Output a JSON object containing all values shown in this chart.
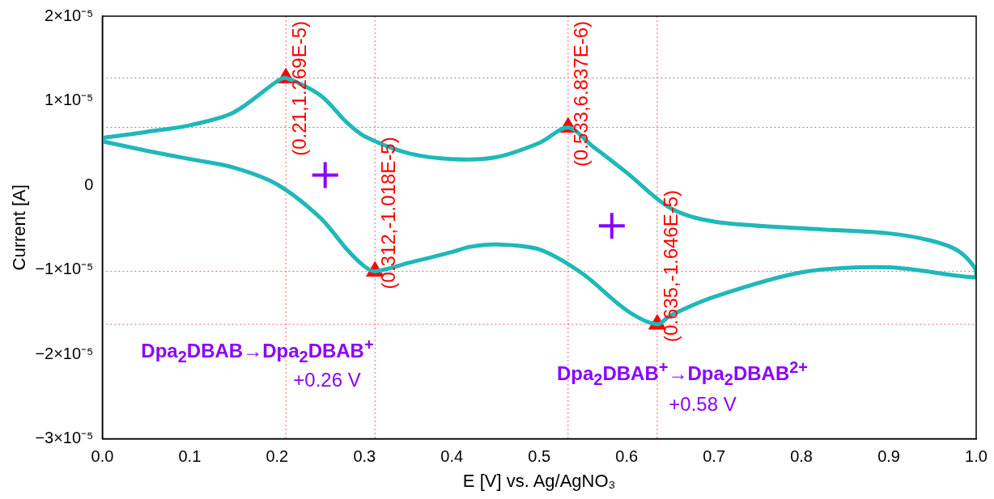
{
  "chart_data": {
    "type": "line",
    "xlabel": "E [V] vs. Ag/AgNO₃",
    "ylabel": "Current [A]",
    "xlim": [
      0,
      1
    ],
    "xticks": [
      {
        "value": 0,
        "label": "0.0"
      },
      0.1,
      0.2,
      0.3,
      0.4,
      0.5,
      0.6,
      0.7,
      0.8,
      0.9,
      {
        "value": 1,
        "label": "1.0"
      }
    ],
    "ylim": [
      -3e-05,
      2e-05
    ],
    "yticks": [
      {
        "value": -3e-05,
        "label": "−3×10⁻⁵"
      },
      {
        "value": -2e-05,
        "label": "−2×10⁻⁵"
      },
      {
        "value": -1e-05,
        "label": "−1×10⁻⁵"
      },
      0,
      {
        "value": 1e-05,
        "label": "1×10⁻⁵"
      },
      {
        "value": 2e-05,
        "label": "2×10⁻⁵"
      }
    ],
    "grid": false,
    "legend": false,
    "series": [
      {
        "type": "line",
        "color": "#20b8b8",
        "marker": "none",
        "line_style": "solid",
        "x": [
          0,
          0.05,
          0.1,
          0.15,
          0.2,
          0.21,
          0.25,
          0.28,
          0.3,
          0.35,
          0.4,
          0.45,
          0.5,
          0.533,
          0.56,
          0.6,
          0.65,
          0.7,
          0.8,
          0.9,
          0.95,
          0.98,
          1,
          1,
          0.9,
          0.8,
          0.7,
          0.65,
          0.635,
          0.6,
          0.55,
          0.5,
          0.45,
          0.42,
          0.4,
          0.35,
          0.312,
          0.3,
          0.28,
          0.25,
          0.2,
          0.15,
          0.1,
          0.05,
          0
        ],
        "values": [
          5.6e-06,
          6.3e-06,
          7.1e-06,
          8.6e-06,
          1.23e-05,
          1.269e-05,
          1.06e-05,
          7.4e-06,
          5.8e-06,
          3.8e-06,
          3.1e-06,
          3.3e-06,
          5e-06,
          6.837e-06,
          4.7e-06,
          1.5e-06,
          -2.7e-06,
          -4.3e-06,
          -5.1e-06,
          -5.7e-06,
          -6.6e-06,
          -7.8e-06,
          -1e-05,
          -1.09e-05,
          -9.7e-06,
          -1.03e-05,
          -1.32e-05,
          -1.54e-05,
          -1.646e-05,
          -1.48e-05,
          -1.05e-05,
          -7.6e-06,
          -7e-06,
          -7.3e-06,
          -7.9e-06,
          -9.2e-06,
          -1.018e-05,
          -9.6e-06,
          -7.6e-06,
          -3.9e-06,
          1e-07,
          2.1e-06,
          3.1e-06,
          4.1e-06,
          5.2e-06
        ]
      },
      {
        "type": "scatter",
        "color": "#ff0000",
        "marker": "triangle",
        "x": [
          0.21,
          0.312,
          0.533,
          0.635
        ],
        "values": [
          1.269e-05,
          -1.018e-05,
          6.837e-06,
          -1.646e-05
        ],
        "value_labels": [
          "(0.21,1.269E-5)",
          "(0.312,-1.018E-5)",
          "(0.533,6.837E-6)",
          "(0.635,-1.646E-5)"
        ]
      },
      {
        "type": "scatter",
        "color": "#8a00ff",
        "marker": "cross",
        "x": [
          0.255,
          0.583
        ],
        "values": [
          1.2e-06,
          -4.8e-06
        ]
      }
    ],
    "ref_lines": [
      {
        "axis": "y",
        "value": 1.269e-05,
        "color": "#888888",
        "line_style": "dotted"
      },
      {
        "axis": "y",
        "value": 6.837e-06,
        "color": "#888888",
        "line_style": "dotted"
      },
      {
        "axis": "y",
        "value": -1.018e-05,
        "color": "#ff6060",
        "line_style": "dotted"
      },
      {
        "axis": "y",
        "value": -1.646e-05,
        "color": "#ff6060",
        "line_style": "dotted"
      },
      {
        "axis": "x",
        "value": 0.21,
        "color": "#ff6060",
        "line_style": "dotted"
      },
      {
        "axis": "x",
        "value": 0.312,
        "color": "#ff6060",
        "line_style": "dotted"
      },
      {
        "axis": "x",
        "value": 0.533,
        "color": "#ff6060",
        "line_style": "dotted"
      },
      {
        "axis": "x",
        "value": 0.635,
        "color": "#ff6060",
        "line_style": "dotted"
      }
    ],
    "annotations": [
      "Dpa$_{2}$DBAB→Dpa$_{2}$DBAB$^{+}$",
      "+0.26 V",
      "Dpa$_{2}$DBAB$^{+}$→Dpa$_{2}$DBAB$^{2+}$",
      "+0.58 V"
    ]
  }
}
